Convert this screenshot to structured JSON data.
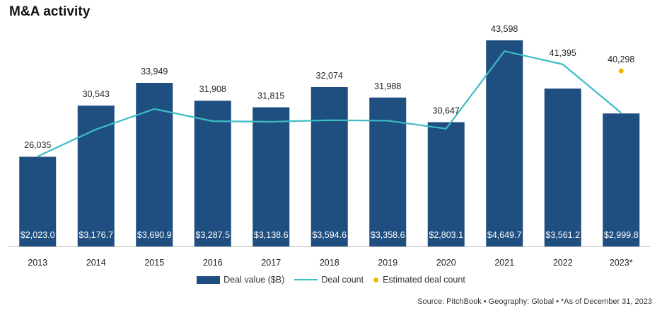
{
  "colors": {
    "bar": "#1f4e80",
    "line": "#3dbcc4",
    "estimate": "#f2b600",
    "text": "#222222"
  },
  "chart_data": {
    "type": "bar",
    "title": "M&A activity",
    "categories": [
      "2013",
      "2014",
      "2015",
      "2016",
      "2017",
      "2018",
      "2019",
      "2020",
      "2021",
      "2022",
      "2023*"
    ],
    "series": [
      {
        "name": "Deal value ($B)",
        "type": "bar",
        "axis": "left",
        "values": [
          2023.0,
          3176.7,
          3690.9,
          3287.5,
          3138.6,
          3594.6,
          3358.6,
          2803.1,
          4649.7,
          3561.2,
          2999.8
        ],
        "labels": [
          "$2,023.0",
          "$3,176.7",
          "$3,690.9",
          "$3,287.5",
          "$3,138.6",
          "$3,594.6",
          "$3,358.6",
          "$2,803.1",
          "$4,649.7",
          "$3,561.2",
          "$2,999.8"
        ]
      },
      {
        "name": "Deal count",
        "type": "line",
        "axis": "right",
        "values": [
          26035,
          30543,
          33949,
          31908,
          31815,
          32074,
          31988,
          30647,
          43598,
          41395,
          33300
        ],
        "labels": [
          "26,035",
          "30,543",
          "33,949",
          "31,908",
          "31,815",
          "32,074",
          "31,988",
          "30,647",
          "43,598",
          "41,395",
          ""
        ]
      },
      {
        "name": "Estimated deal count",
        "type": "point",
        "axis": "right",
        "index": 10,
        "value": 40298,
        "label": "40,298"
      }
    ],
    "ylim_left": [
      0,
      5000
    ],
    "ylim_right": [
      11000,
      48000
    ],
    "grid": false,
    "legend": "bottom-center"
  },
  "legend": {
    "deal_value": "Deal value ($B)",
    "deal_count": "Deal count",
    "estimated": "Estimated deal count"
  },
  "source": "Source: PitchBook  •  Geography: Global  •  *As of December 31, 2023"
}
